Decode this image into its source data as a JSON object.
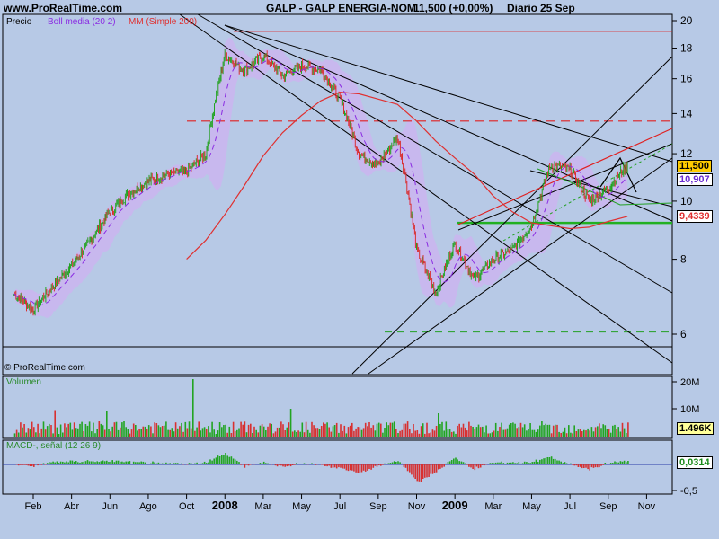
{
  "header": {
    "site": "www.ProRealTime.com",
    "title": "GALP - GALP ENERGIA-NOM",
    "quote": "11,500 (+0,00%)",
    "period": "Diario",
    "date": "25 Sep"
  },
  "price_panel": {
    "label_price": "Precio",
    "label_boll": "Boll media (20 2)",
    "label_mm": "MM (Simple 200)",
    "copyright": "© ProRealTime.com",
    "tag_last": "11,500",
    "tag_boll": "10,907",
    "tag_mm": "9,4339",
    "colors": {
      "boll": "#8a2be2",
      "mm": "#e03030",
      "band": "#c8b8ee",
      "up": "#22a422",
      "down": "#d83030"
    }
  },
  "volume_panel": {
    "label": "Volumen",
    "tag": "1.496K"
  },
  "macd_panel": {
    "label": "MACD-, señal (12 26 9)",
    "tag": "0,0314"
  },
  "chart_data": [
    {
      "type": "line",
      "title": "GALP - GALP ENERGIA-NOM",
      "xlabel": "",
      "ylabel": "",
      "ylim": [
        5,
        20
      ],
      "log_scale": true,
      "grid": false,
      "y_ticks": [
        "20",
        "18",
        "16",
        "14",
        "12",
        "10",
        "8",
        "6"
      ],
      "x_ticks": [
        "Feb",
        "Abr",
        "Jun",
        "Ago",
        "Oct",
        "2008",
        "Mar",
        "May",
        "Jul",
        "Sep",
        "Nov",
        "2009",
        "Mar",
        "May",
        "Jul",
        "Sep",
        "Nov"
      ],
      "x": [
        "2007-01",
        "2007-02",
        "2007-03",
        "2007-04",
        "2007-05",
        "2007-06",
        "2007-07",
        "2007-08",
        "2007-09",
        "2007-10",
        "2007-11",
        "2007-12",
        "2008-01",
        "2008-02",
        "2008-03",
        "2008-04",
        "2008-05",
        "2008-06",
        "2008-07",
        "2008-08",
        "2008-09",
        "2008-10",
        "2008-11",
        "2008-12",
        "2009-01",
        "2009-02",
        "2009-03",
        "2009-04",
        "2009-05",
        "2009-06",
        "2009-07",
        "2009-08",
        "2009-09"
      ],
      "series": [
        {
          "name": "Precio",
          "values": [
            7.0,
            6.6,
            7.2,
            7.8,
            8.6,
            9.6,
            10.3,
            10.8,
            11.1,
            11.2,
            12.0,
            17.5,
            16.5,
            17.5,
            16.2,
            16.8,
            16.6,
            14.8,
            12.0,
            11.5,
            12.8,
            8.3,
            7.0,
            8.5,
            7.4,
            8.0,
            8.3,
            9.1,
            11.5,
            11.3,
            10.0,
            10.5,
            11.5
          ]
        },
        {
          "name": "MM (Simple 200)",
          "values": [
            null,
            null,
            null,
            null,
            null,
            null,
            null,
            null,
            null,
            8.0,
            8.6,
            9.5,
            10.6,
            11.9,
            13.0,
            13.9,
            14.7,
            15.2,
            15.1,
            14.8,
            14.5,
            13.6,
            12.6,
            11.8,
            11.1,
            10.2,
            9.6,
            9.2,
            9.1,
            9.0,
            9.05,
            9.25,
            9.43
          ]
        }
      ],
      "reference_lines": [
        19.2,
        13.6,
        9.2,
        6.05
      ],
      "last_values": {
        "price": 11.5,
        "boll": 10.907,
        "mm": 9.4339
      }
    },
    {
      "type": "bar",
      "title": "Volumen",
      "y_ticks": [
        "20M",
        "10M"
      ],
      "last_value": "1.496K"
    },
    {
      "type": "bar",
      "title": "MACD-, señal (12 26 9)",
      "y_ticks": [
        "-0,5"
      ],
      "last_value": "0,0314"
    }
  ]
}
